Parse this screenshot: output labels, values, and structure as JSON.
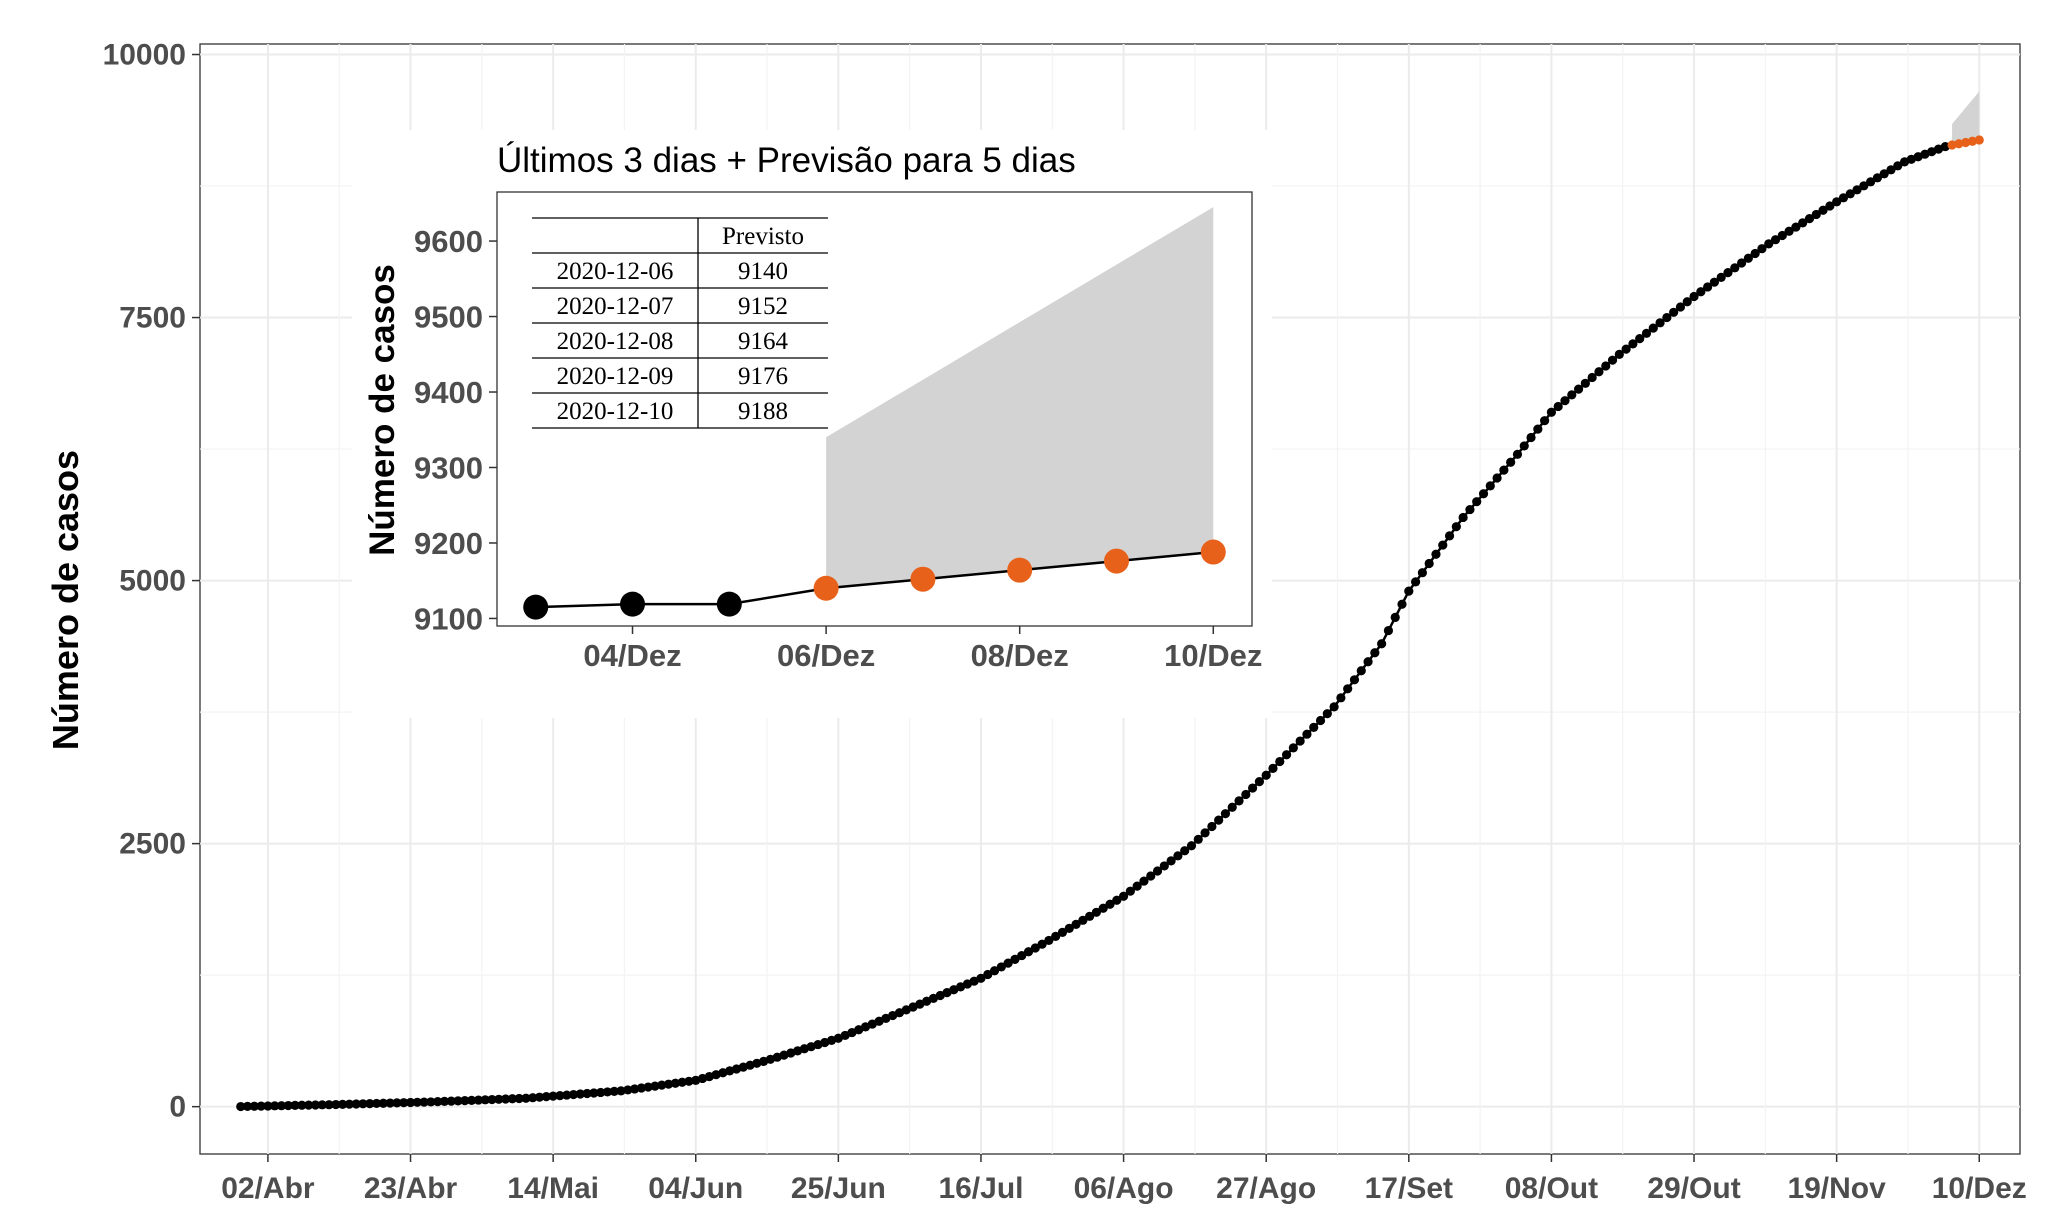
{
  "chart_data": [
    {
      "type": "line",
      "ylabel": "Número de casos",
      "xlabel": "",
      "ylim": [
        -450,
        10100
      ],
      "xlim": [
        "2020-03-23",
        "2020-12-16"
      ],
      "y_ticks": [
        0,
        2500,
        5000,
        7500,
        10000
      ],
      "x_ticks": [
        {
          "date": "2020-04-02",
          "label": "02/Abr"
        },
        {
          "date": "2020-04-23",
          "label": "23/Abr"
        },
        {
          "date": "2020-05-14",
          "label": "14/Mai"
        },
        {
          "date": "2020-06-04",
          "label": "04/Jun"
        },
        {
          "date": "2020-06-25",
          "label": "25/Jun"
        },
        {
          "date": "2020-07-16",
          "label": "16/Jul"
        },
        {
          "date": "2020-08-06",
          "label": "06/Ago"
        },
        {
          "date": "2020-08-27",
          "label": "27/Ago"
        },
        {
          "date": "2020-09-17",
          "label": "17/Set"
        },
        {
          "date": "2020-10-08",
          "label": "08/Out"
        },
        {
          "date": "2020-10-29",
          "label": "29/Out"
        },
        {
          "date": "2020-11-19",
          "label": "19/Nov"
        },
        {
          "date": "2020-12-10",
          "label": "10/Dez"
        }
      ],
      "grid": true,
      "series": [
        {
          "kind": "observed",
          "color": "#000000",
          "points": [
            {
              "x": "2020-03-29",
              "y": 1
            },
            {
              "x": "2020-04-12",
              "y": 20
            },
            {
              "x": "2020-04-26",
              "y": 45
            },
            {
              "x": "2020-05-10",
              "y": 80
            },
            {
              "x": "2020-05-24",
              "y": 150
            },
            {
              "x": "2020-06-04",
              "y": 250
            },
            {
              "x": "2020-06-14",
              "y": 430
            },
            {
              "x": "2020-06-25",
              "y": 650
            },
            {
              "x": "2020-07-05",
              "y": 920
            },
            {
              "x": "2020-07-16",
              "y": 1220
            },
            {
              "x": "2020-07-26",
              "y": 1580
            },
            {
              "x": "2020-08-06",
              "y": 2000
            },
            {
              "x": "2020-08-16",
              "y": 2480
            },
            {
              "x": "2020-08-27",
              "y": 3150
            },
            {
              "x": "2020-09-06",
              "y": 3800
            },
            {
              "x": "2020-09-13",
              "y": 4400
            },
            {
              "x": "2020-09-17",
              "y": 4900
            },
            {
              "x": "2020-09-25",
              "y": 5600
            },
            {
              "x": "2020-10-03",
              "y": 6200
            },
            {
              "x": "2020-10-08",
              "y": 6600
            },
            {
              "x": "2020-10-18",
              "y": 7150
            },
            {
              "x": "2020-10-29",
              "y": 7700
            },
            {
              "x": "2020-11-09",
              "y": 8200
            },
            {
              "x": "2020-11-19",
              "y": 8600
            },
            {
              "x": "2020-11-29",
              "y": 8980
            },
            {
              "x": "2020-12-05",
              "y": 9125
            }
          ]
        },
        {
          "kind": "forecast",
          "color": "#e8611a",
          "points": [
            {
              "x": "2020-12-06",
              "y": 9140
            },
            {
              "x": "2020-12-07",
              "y": 9152
            },
            {
              "x": "2020-12-08",
              "y": 9164
            },
            {
              "x": "2020-12-09",
              "y": 9176
            },
            {
              "x": "2020-12-10",
              "y": 9188
            }
          ]
        }
      ],
      "band": {
        "color": "#d3d3d3",
        "lower": [
          {
            "x": "2020-12-06",
            "y": 9140
          },
          {
            "x": "2020-12-10",
            "y": 9188
          }
        ],
        "upper": [
          {
            "x": "2020-12-06",
            "y": 9340
          },
          {
            "x": "2020-12-10",
            "y": 9650
          }
        ]
      }
    },
    {
      "type": "line",
      "title": "Últimos 3 dias + Previsão para 5 dias",
      "ylabel": "Número de casos",
      "xlabel": "",
      "ylim": [
        9090,
        9665
      ],
      "xlim": [
        "2020-12-02.6",
        "2020-12-10.4"
      ],
      "y_ticks": [
        9100,
        9200,
        9300,
        9400,
        9500,
        9600
      ],
      "x_ticks": [
        {
          "day": 4,
          "label": "04/Dez"
        },
        {
          "day": 6,
          "label": "06/Dez"
        },
        {
          "day": 8,
          "label": "08/Dez"
        },
        {
          "day": 10,
          "label": "10/Dez"
        }
      ],
      "grid": false,
      "series": [
        {
          "kind": "observed",
          "color": "#000000",
          "points": [
            {
              "day": 3,
              "y": 9115
            },
            {
              "day": 4,
              "y": 9119
            },
            {
              "day": 5,
              "y": 9119
            }
          ]
        },
        {
          "kind": "forecast",
          "color": "#e8611a",
          "points": [
            {
              "day": 6,
              "y": 9140
            },
            {
              "day": 7,
              "y": 9152
            },
            {
              "day": 8,
              "y": 9164
            },
            {
              "day": 9,
              "y": 9176
            },
            {
              "day": 10,
              "y": 9188
            }
          ]
        }
      ],
      "band": {
        "color": "#d3d3d3",
        "lower": [
          {
            "day": 6,
            "y": 9140
          },
          {
            "day": 10,
            "y": 9188
          }
        ],
        "upper": [
          {
            "day": 6,
            "y": 9340
          },
          {
            "day": 10,
            "y": 9645
          }
        ]
      },
      "table": {
        "header": [
          "",
          "Previsto"
        ],
        "rows": [
          [
            "2020-12-06",
            "9140"
          ],
          [
            "2020-12-07",
            "9152"
          ],
          [
            "2020-12-08",
            "9164"
          ],
          [
            "2020-12-09",
            "9176"
          ],
          [
            "2020-12-10",
            "9188"
          ]
        ]
      }
    }
  ]
}
